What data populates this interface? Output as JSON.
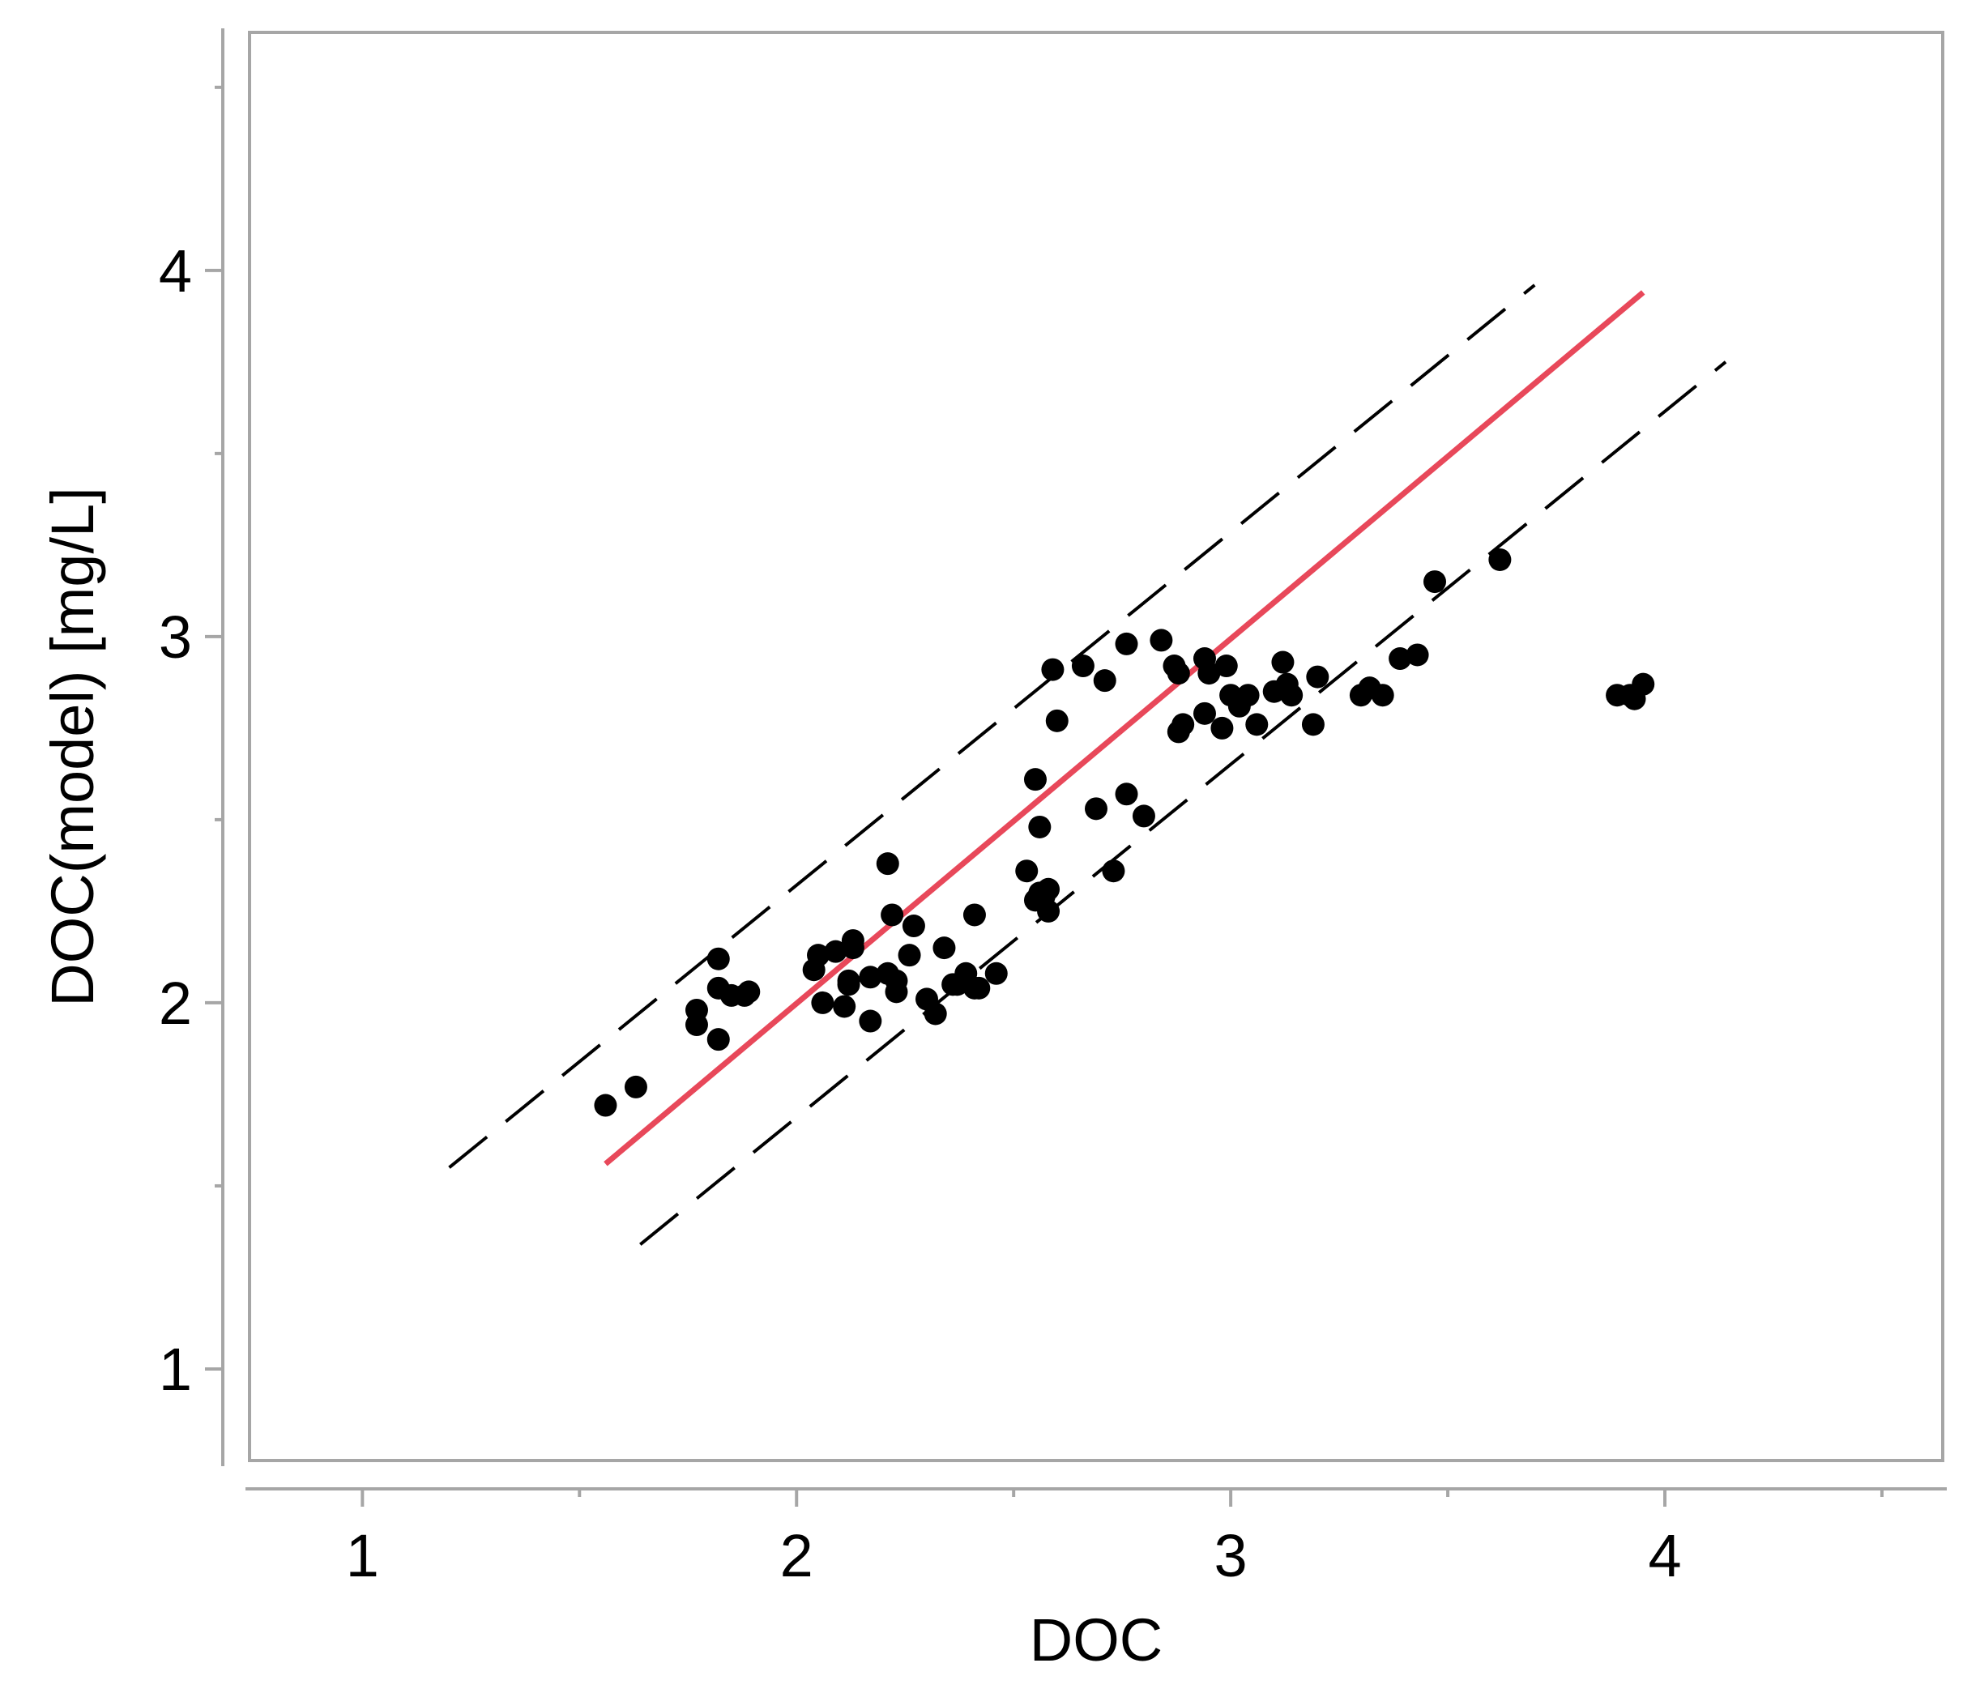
{
  "chart_data": {
    "type": "scatter",
    "title": "",
    "xlabel": "DOC",
    "ylabel": "DOC(model) [mg/L]",
    "xlim": [
      0.74,
      4.64
    ],
    "ylim": [
      0.75,
      4.65
    ],
    "x_ticks": [
      1,
      2,
      3,
      4
    ],
    "y_ticks": [
      1,
      2,
      3,
      4
    ],
    "x_tick_labels": [
      "1",
      "2",
      "3",
      "4"
    ],
    "y_tick_labels": [
      "1",
      "2",
      "3",
      "4"
    ],
    "grid": false,
    "legend": "none",
    "colors": {
      "points": "#000000",
      "fit_line": "#e8485a",
      "band_lines": "#000000",
      "frame": "#a6a6a6"
    },
    "fit_line": {
      "x": [
        1.56,
        3.95
      ],
      "y": [
        1.56,
        3.94
      ]
    },
    "upper_band": {
      "x": [
        1.2,
        3.7
      ],
      "y": [
        1.55,
        3.96
      ]
    },
    "lower_band": {
      "x": [
        1.64,
        4.14
      ],
      "y": [
        1.34,
        3.75
      ]
    },
    "points": {
      "x": [
        1.56,
        1.63,
        1.77,
        1.77,
        1.82,
        1.82,
        1.82,
        1.85,
        1.88,
        1.89,
        2.04,
        2.05,
        2.06,
        2.09,
        2.11,
        2.12,
        2.12,
        2.13,
        2.13,
        2.17,
        2.17,
        2.21,
        2.21,
        2.22,
        2.23,
        2.23,
        2.26,
        2.27,
        2.3,
        2.32,
        2.34,
        2.36,
        2.37,
        2.39,
        2.41,
        2.41,
        2.42,
        2.46,
        2.53,
        2.55,
        2.55,
        2.56,
        2.56,
        2.57,
        2.58,
        2.58,
        2.59,
        2.6,
        2.66,
        2.69,
        2.71,
        2.73,
        2.76,
        2.76,
        2.8,
        2.84,
        2.87,
        2.88,
        2.88,
        2.89,
        2.94,
        2.94,
        2.95,
        2.98,
        2.99,
        3.0,
        3.02,
        3.04,
        3.06,
        3.1,
        3.12,
        3.13,
        3.14,
        3.19,
        3.2,
        3.3,
        3.32,
        3.35,
        3.39,
        3.43,
        3.47,
        3.62,
        3.89,
        3.92,
        3.93,
        3.95
      ],
      "y": [
        1.72,
        1.77,
        1.94,
        1.98,
        1.9,
        2.04,
        2.12,
        2.02,
        2.02,
        2.03,
        2.09,
        2.13,
        2.0,
        2.14,
        1.99,
        2.05,
        2.06,
        2.15,
        2.17,
        2.07,
        1.95,
        2.38,
        2.08,
        2.24,
        2.06,
        2.03,
        2.13,
        2.21,
        2.01,
        1.97,
        2.15,
        2.05,
        2.05,
        2.08,
        2.04,
        2.24,
        2.04,
        2.08,
        2.36,
        2.28,
        2.61,
        2.48,
        2.3,
        2.29,
        2.31,
        2.25,
        2.91,
        2.77,
        2.92,
        2.53,
        2.88,
        2.36,
        2.98,
        2.57,
        2.51,
        2.99,
        2.92,
        2.9,
        2.74,
        2.76,
        2.94,
        2.79,
        2.9,
        2.75,
        2.92,
        2.84,
        2.81,
        2.84,
        2.76,
        2.85,
        2.93,
        2.87,
        2.84,
        2.76,
        2.89,
        2.84,
        2.86,
        2.84,
        2.94,
        2.95,
        3.15,
        3.21,
        2.84,
        2.84,
        2.83,
        2.87
      ]
    }
  }
}
